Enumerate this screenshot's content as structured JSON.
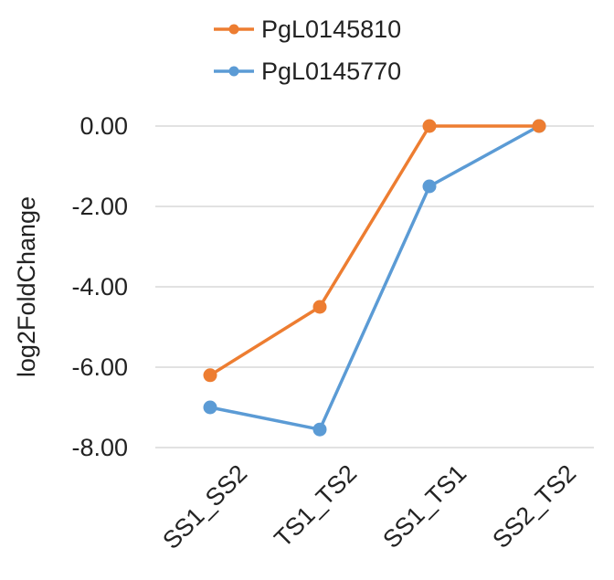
{
  "chart_data": {
    "type": "line",
    "ylabel": "log2FoldChange",
    "categories": [
      "SS1_SS2",
      "TS1_TS2",
      "SS1_TS1",
      "SS2_TS2"
    ],
    "ylim": [
      -8,
      0
    ],
    "yticks": [
      "0.00",
      "-2.00",
      "-4.00",
      "-6.00",
      "-8.00"
    ],
    "ytick_values": [
      0,
      -2,
      -4,
      -6,
      -8
    ],
    "grid": true,
    "legend_position": "top",
    "series": [
      {
        "name": "PgL0145810",
        "color": "#ED7D31",
        "values": [
          -6.2,
          -4.5,
          0.0,
          0.0
        ]
      },
      {
        "name": "PgL0145770",
        "color": "#5B9BD5",
        "values": [
          -7.0,
          -7.55,
          -1.5,
          0.0
        ]
      }
    ]
  }
}
